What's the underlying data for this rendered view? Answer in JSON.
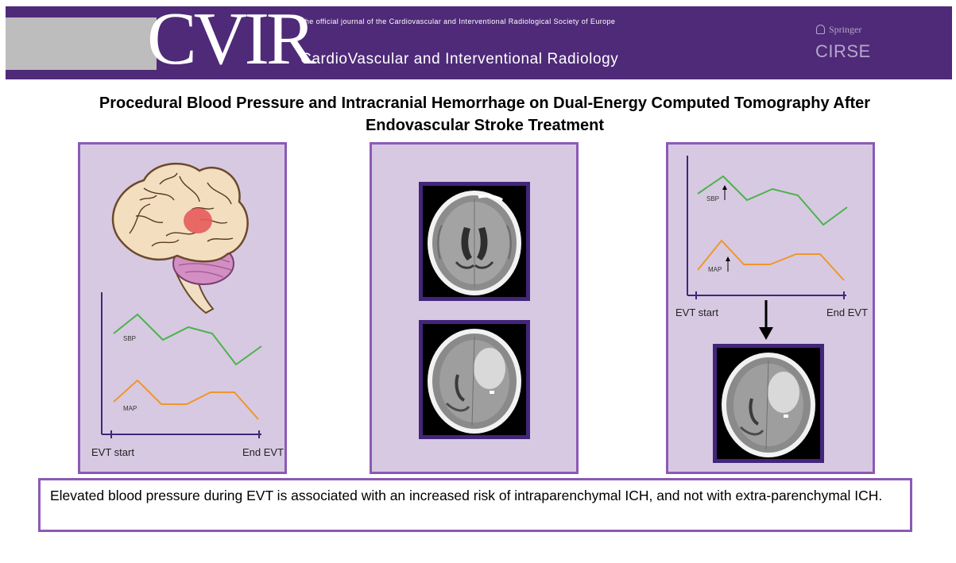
{
  "banner": {
    "logo": "CVIR",
    "tagline": "The official journal of the  Cardiovascular and Interventional Radiological Society of Europe",
    "journal": "CardioVascular and Interventional Radiology",
    "publisher": "Springer",
    "society": "CIRSE"
  },
  "title": "Procedural Blood Pressure and Intracranial Hemorrhage on Dual-Energy Computed Tomography After Endovascular Stroke Treatment",
  "colors": {
    "accent": "#4f2a78",
    "panel_bg": "#d7c9e2",
    "panel_border": "#8c5ab5",
    "sbp": "#4bb34b",
    "map": "#f0962a"
  },
  "panel_left": {
    "icon": "brain-icon",
    "chart": {
      "sbp_label": "SBP",
      "map_label": "MAP",
      "x_start": "EVT start",
      "x_end": "End EVT"
    }
  },
  "panel_middle": {
    "scans": [
      "ct-scan-before-icon",
      "ct-scan-hemorrhage-icon"
    ]
  },
  "panel_right": {
    "chart": {
      "sbp_label": "SBP",
      "map_label": "MAP",
      "x_start": "EVT start",
      "x_end": "End EVT"
    },
    "scan": "ct-scan-hemorrhage-icon"
  },
  "conclusion": "Elevated blood pressure during EVT is associated with an increased risk of intraparenchymal ICH, and not with extra-parenchymal ICH."
}
